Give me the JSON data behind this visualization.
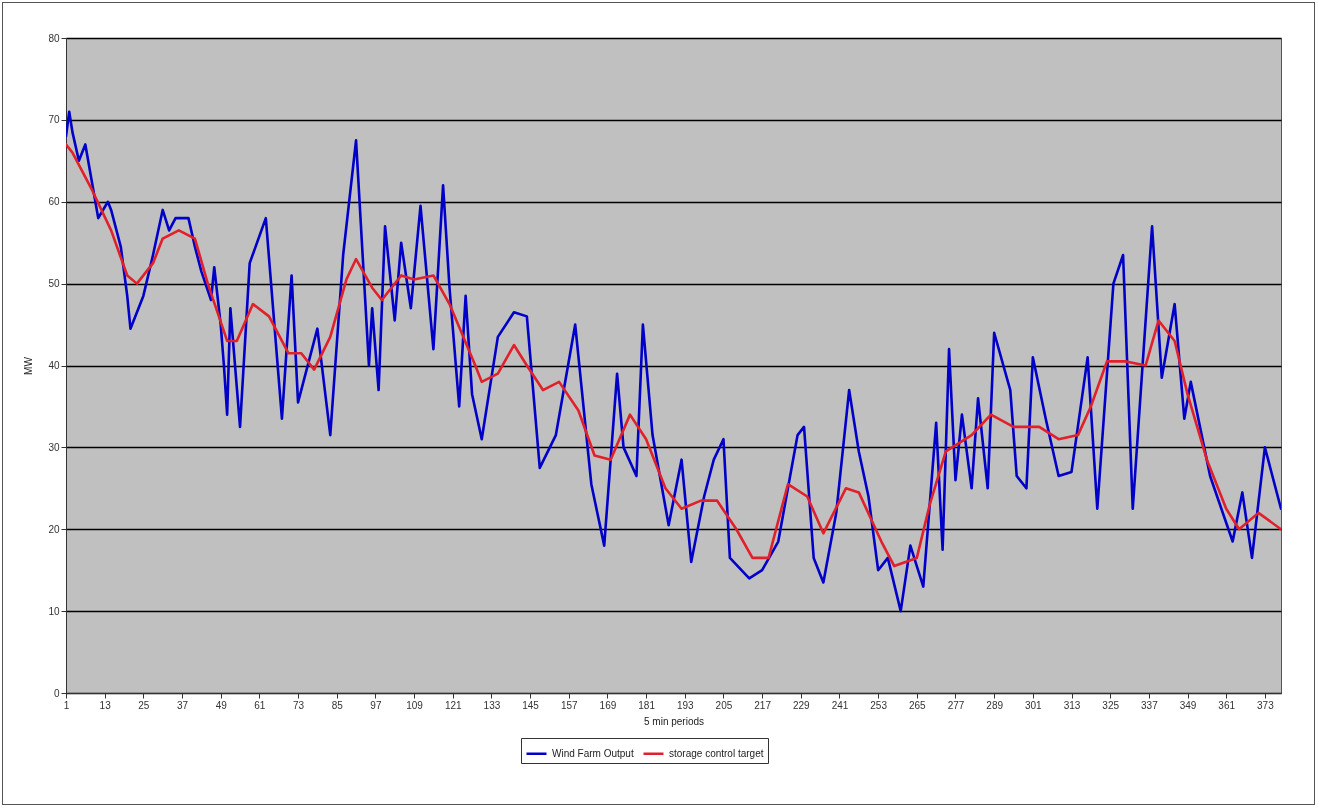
{
  "chart_data": {
    "type": "line",
    "xlabel": "5 min periods",
    "ylabel": "MW",
    "xlim": [
      1,
      378
    ],
    "xticks": [
      1,
      13,
      25,
      37,
      49,
      61,
      73,
      85,
      97,
      109,
      121,
      133,
      145,
      157,
      169,
      181,
      193,
      205,
      217,
      229,
      241,
      253,
      265,
      277,
      289,
      301,
      313,
      325,
      337,
      349,
      361,
      373
    ],
    "ylim": [
      0,
      80
    ],
    "yticks": [
      0,
      10,
      20,
      30,
      40,
      50,
      60,
      70,
      80
    ],
    "grid": "y",
    "legend": "bottom",
    "series": [
      {
        "name": "Wind Farm Output",
        "color": "#0000c8",
        "x": [
          1,
          2,
          3,
          5,
          7,
          9,
          11,
          14,
          15,
          18,
          20,
          21,
          25,
          28,
          31,
          33,
          35,
          39,
          41,
          43,
          46,
          47,
          49,
          50,
          51,
          52,
          55,
          58,
          63,
          68,
          71,
          73,
          79,
          83,
          87,
          91,
          95,
          96,
          98,
          100,
          103,
          105,
          108,
          111,
          115,
          118,
          120,
          123,
          125,
          127,
          130,
          135,
          140,
          144,
          148,
          153,
          159,
          164,
          168,
          172,
          174,
          178,
          180,
          183,
          188,
          192,
          195,
          199,
          202,
          205,
          207,
          213,
          217,
          222,
          228,
          230,
          233,
          236,
          240,
          244,
          247,
          250,
          253,
          256,
          260,
          263,
          267,
          271,
          273,
          275,
          277,
          279,
          282,
          284,
          287,
          289,
          294,
          296,
          299,
          301,
          305,
          309,
          313,
          318,
          321,
          326,
          329,
          332,
          338,
          341,
          345,
          348,
          350,
          356,
          363,
          366,
          369,
          373,
          378
        ],
        "values": [
          68,
          71,
          68.5,
          65,
          67,
          62.5,
          58,
          60,
          59,
          54.5,
          48.5,
          44.5,
          48.5,
          53.5,
          59,
          56.5,
          58,
          58,
          54.5,
          51.5,
          48,
          52,
          45,
          40,
          34,
          47,
          32.5,
          52.5,
          58,
          33.5,
          51,
          35.5,
          44.5,
          31.5,
          53.5,
          67.5,
          40,
          47,
          37,
          57,
          45.5,
          55,
          47,
          59.5,
          42,
          62,
          49.5,
          35,
          48.5,
          36.5,
          31,
          43.5,
          46.5,
          46,
          27.5,
          31.5,
          45,
          25.5,
          18,
          39,
          30,
          26.5,
          45,
          31.5,
          20.5,
          28.5,
          16,
          24,
          28.5,
          31,
          16.5,
          14,
          15,
          18.5,
          31.5,
          32.5,
          16.5,
          13.5,
          22,
          37,
          29.5,
          24,
          15,
          16.5,
          10,
          18,
          13,
          33,
          17.5,
          42,
          26,
          34,
          25,
          36,
          25,
          44,
          37,
          26.5,
          25,
          41,
          33.5,
          26.5,
          27,
          41,
          22.5,
          50,
          53.5,
          22.5,
          57,
          38.5,
          47.5,
          33.5,
          38,
          26.5,
          18.5,
          24.5,
          16.5,
          30,
          22.5
        ]
      },
      {
        "name": "storage control target",
        "color": "#e0202a",
        "x": [
          1,
          3,
          9,
          15,
          20,
          23,
          28,
          31,
          36,
          41,
          45,
          51,
          54,
          59,
          64,
          70,
          74,
          78,
          83,
          88,
          91,
          96,
          99,
          105,
          109,
          115,
          120,
          128,
          130,
          135,
          140,
          144,
          149,
          154,
          160,
          165,
          170,
          176,
          181,
          187,
          192,
          198,
          203,
          209,
          214,
          219,
          225,
          231,
          236,
          243,
          247,
          254,
          258,
          265,
          269,
          274,
          282,
          288,
          295,
          303,
          309,
          315,
          319,
          324,
          330,
          336,
          340,
          345,
          349,
          355,
          361,
          365,
          371,
          378
        ],
        "values": [
          67,
          66,
          61.5,
          56.5,
          51,
          50,
          52.5,
          55.5,
          56.5,
          55.5,
          50,
          43,
          43,
          47.5,
          46,
          41.5,
          41.5,
          39.5,
          43.5,
          50.5,
          53,
          49.5,
          48,
          51,
          50.5,
          51,
          47.5,
          40,
          38,
          39,
          42.5,
          40,
          37,
          38,
          34.5,
          29,
          28.5,
          34,
          31,
          25,
          22.5,
          23.5,
          23.5,
          20,
          16.5,
          16.5,
          25.5,
          24,
          19.5,
          25,
          24.5,
          18.5,
          15.5,
          16.5,
          23,
          29.5,
          31.5,
          34,
          32.5,
          32.5,
          31,
          31.5,
          35,
          40.5,
          40.5,
          40,
          45.5,
          43,
          36.5,
          28.5,
          22.5,
          20,
          22,
          20
        ]
      }
    ]
  }
}
